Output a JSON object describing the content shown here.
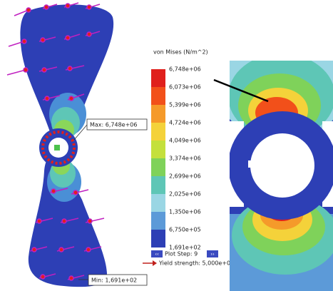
{
  "legend": {
    "title": "von Mises (N/m^2)",
    "labels": [
      "6,748e+06",
      "6,073e+06",
      "5,399e+06",
      "4,724e+06",
      "4,049e+06",
      "3,374e+06",
      "2,699e+06",
      "2,025e+06",
      "1,350e+06",
      "6,750e+05",
      "1,691e+02"
    ]
  },
  "plot_step": "Plot Step: 9",
  "yield_strength": "Yield strength: 5,000e+07",
  "max_label": "Max: 6,748e+06",
  "min_label": "Min: 1,691e+02"
}
